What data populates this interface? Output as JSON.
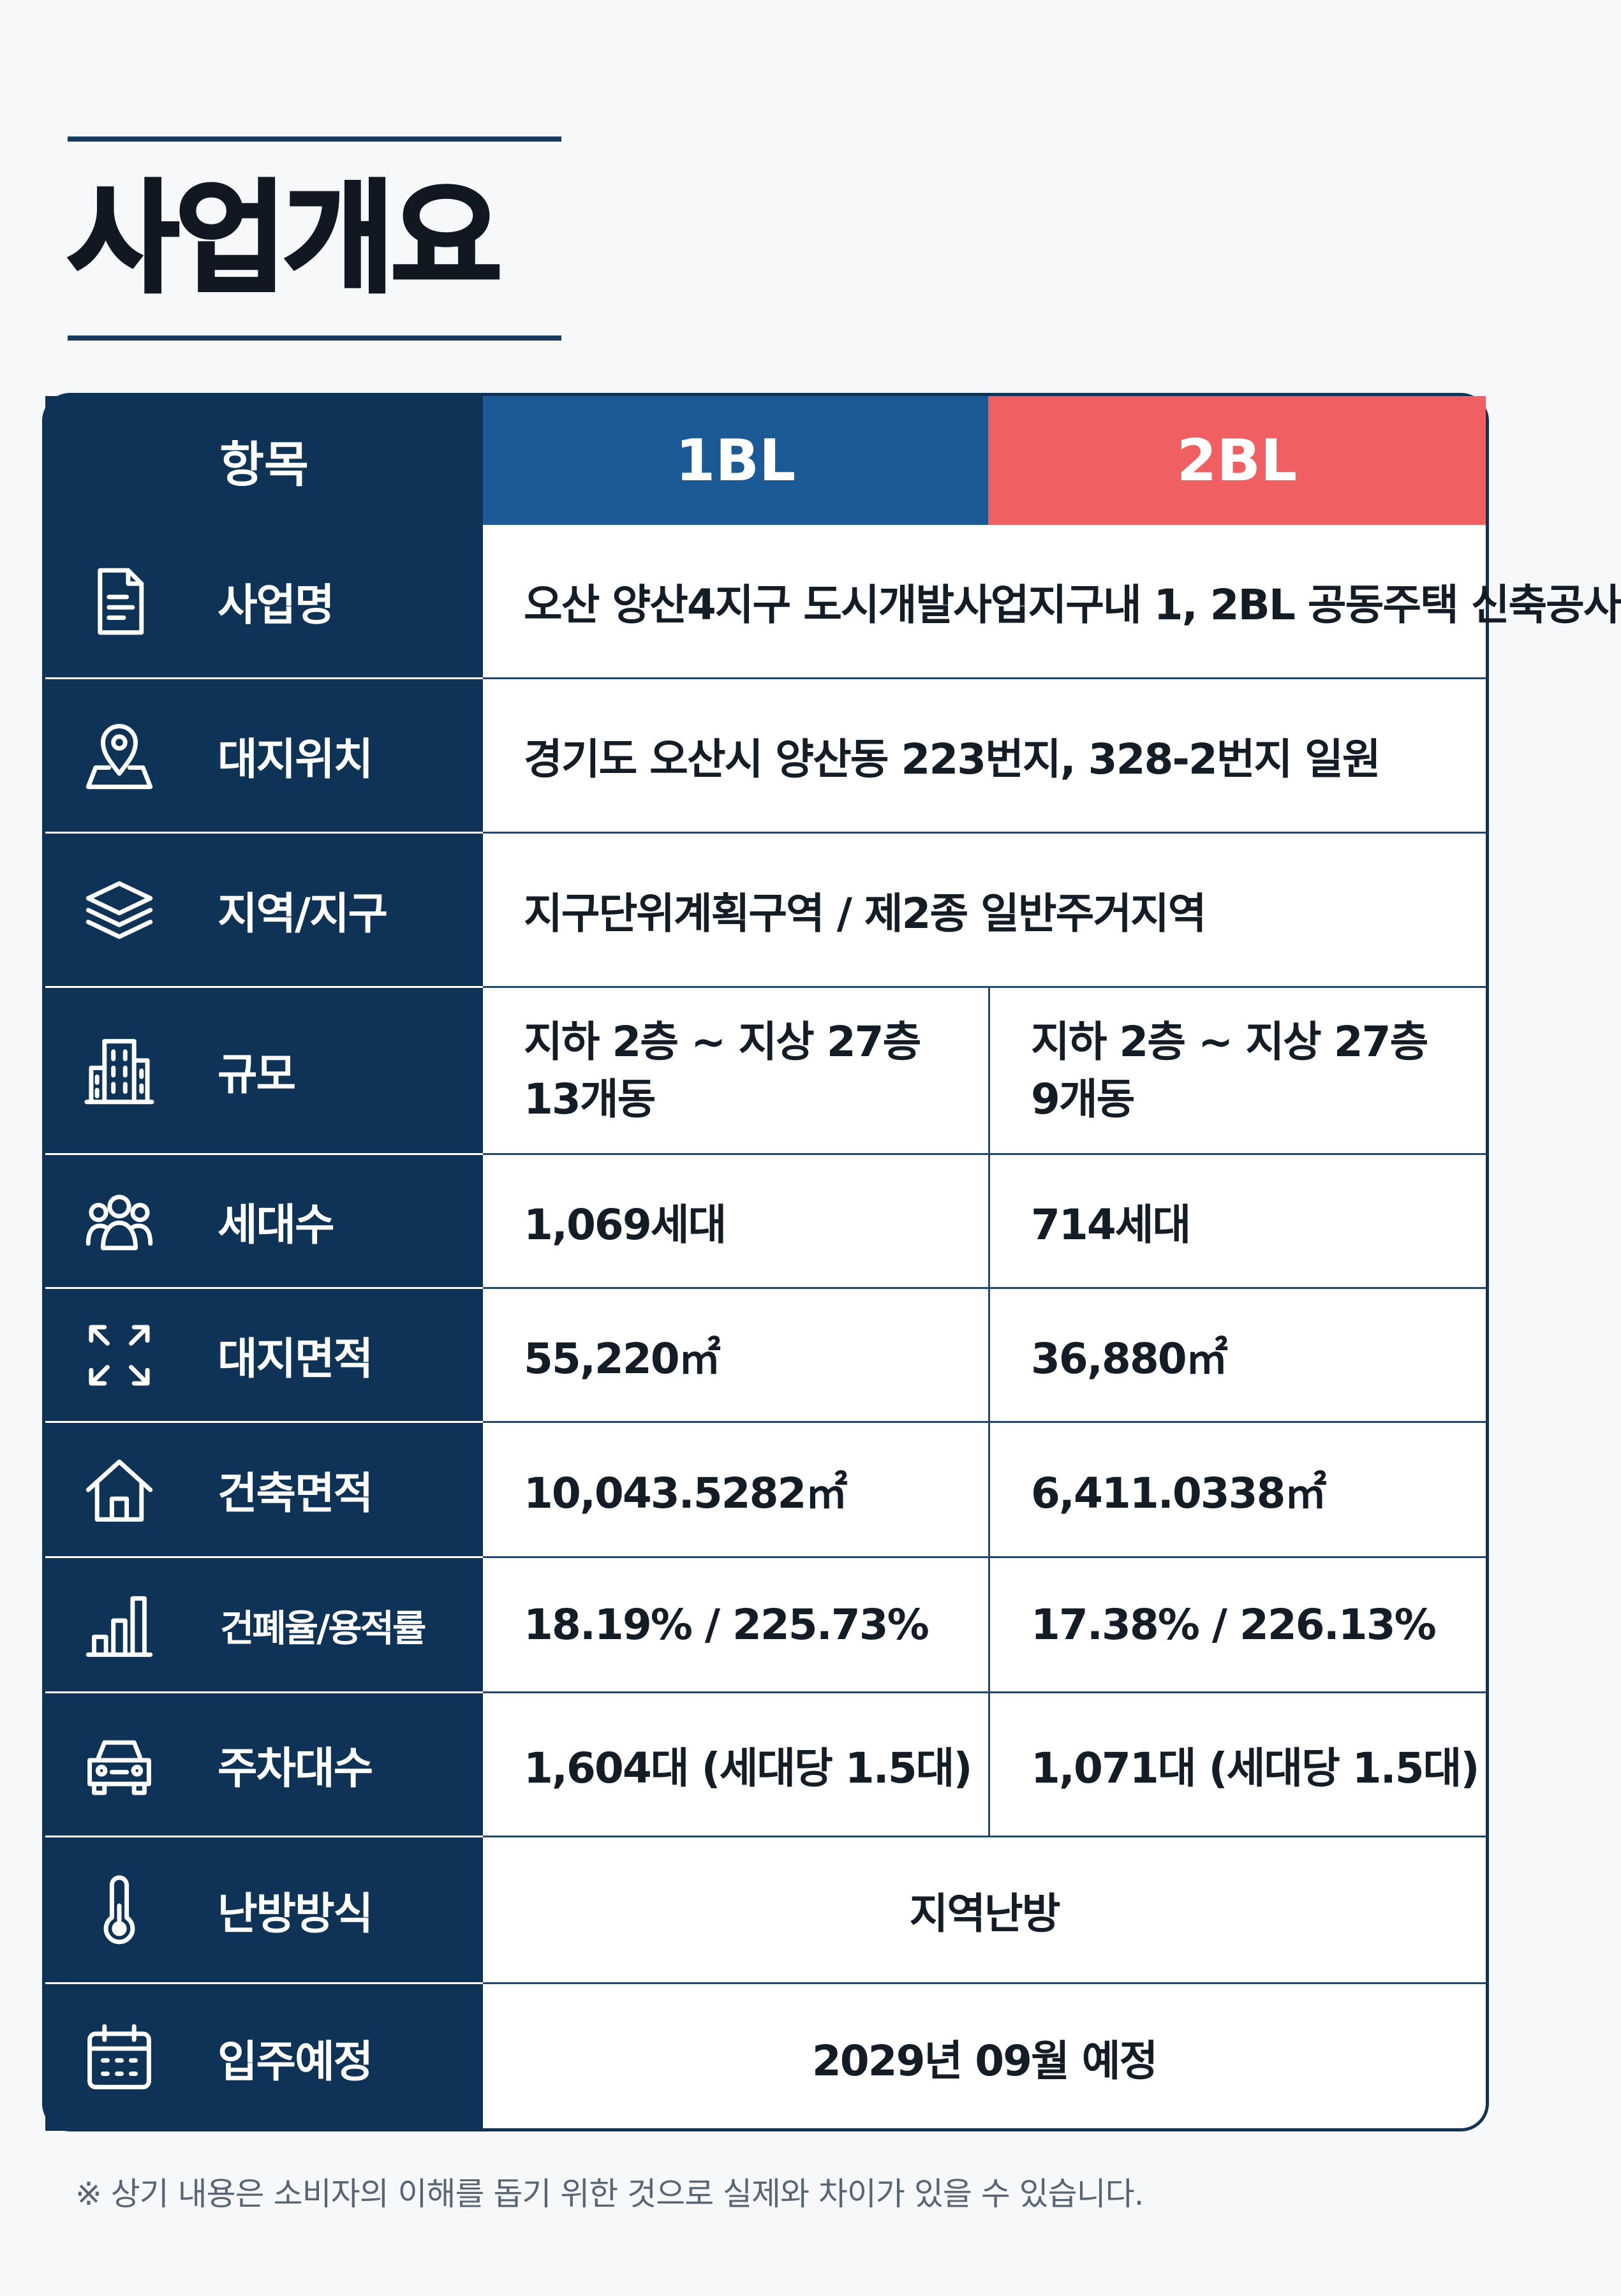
{
  "title": "사업개요",
  "header": {
    "item": "항목",
    "col1": "1BL",
    "col2": "2BL"
  },
  "rows": [
    {
      "icon": "document-icon",
      "label": "사업명",
      "span": "오산 양산4지구 도시개발사업지구내 1, 2BL 공동주택 신축공사"
    },
    {
      "icon": "location-pin-icon",
      "label": "대지위치",
      "span": "경기도 오산시 양산동 223번지, 328-2번지 일원"
    },
    {
      "icon": "layers-icon",
      "label": "지역/지구",
      "span": "지구단위계획구역 / 제2종 일반주거지역"
    },
    {
      "icon": "building-icon",
      "label": "규모",
      "v1": [
        "지하 2층 ~ 지상 27층",
        "13개동"
      ],
      "v2": [
        "지하 2층 ~ 지상 27층",
        "9개동"
      ]
    },
    {
      "icon": "users-icon",
      "label": "세대수",
      "v1": "1,069세대",
      "v2": "714세대"
    },
    {
      "icon": "expand-icon",
      "label": "대지면적",
      "v1": "55,220㎡",
      "v2": "36,880㎡"
    },
    {
      "icon": "house-icon",
      "label": "건축면적",
      "v1": "10,043.5282㎡",
      "v2": "6,411.0338㎡"
    },
    {
      "icon": "bar-chart-icon",
      "label": "건폐율/용적률",
      "v1": "18.19% / 225.73%",
      "v2": "17.38% / 226.13%"
    },
    {
      "icon": "car-icon",
      "label": "주차대수",
      "v1": "1,604대 (세대당 1.5대)",
      "v2": "1,071대 (세대당 1.5대)"
    },
    {
      "icon": "thermometer-icon",
      "label": "난방방식",
      "span": "지역난방"
    },
    {
      "icon": "calendar-icon",
      "label": "입주예정",
      "span": "2029년 09월 예정"
    }
  ],
  "footnote": "※ 상기 내용은 소비자의 이해를 돕기 위한 것으로 실제와 차이가 있을 수 있습니다.",
  "colors": {
    "navy": "#0f3357",
    "blue": "#1b5a96",
    "coral": "#f05f62"
  }
}
